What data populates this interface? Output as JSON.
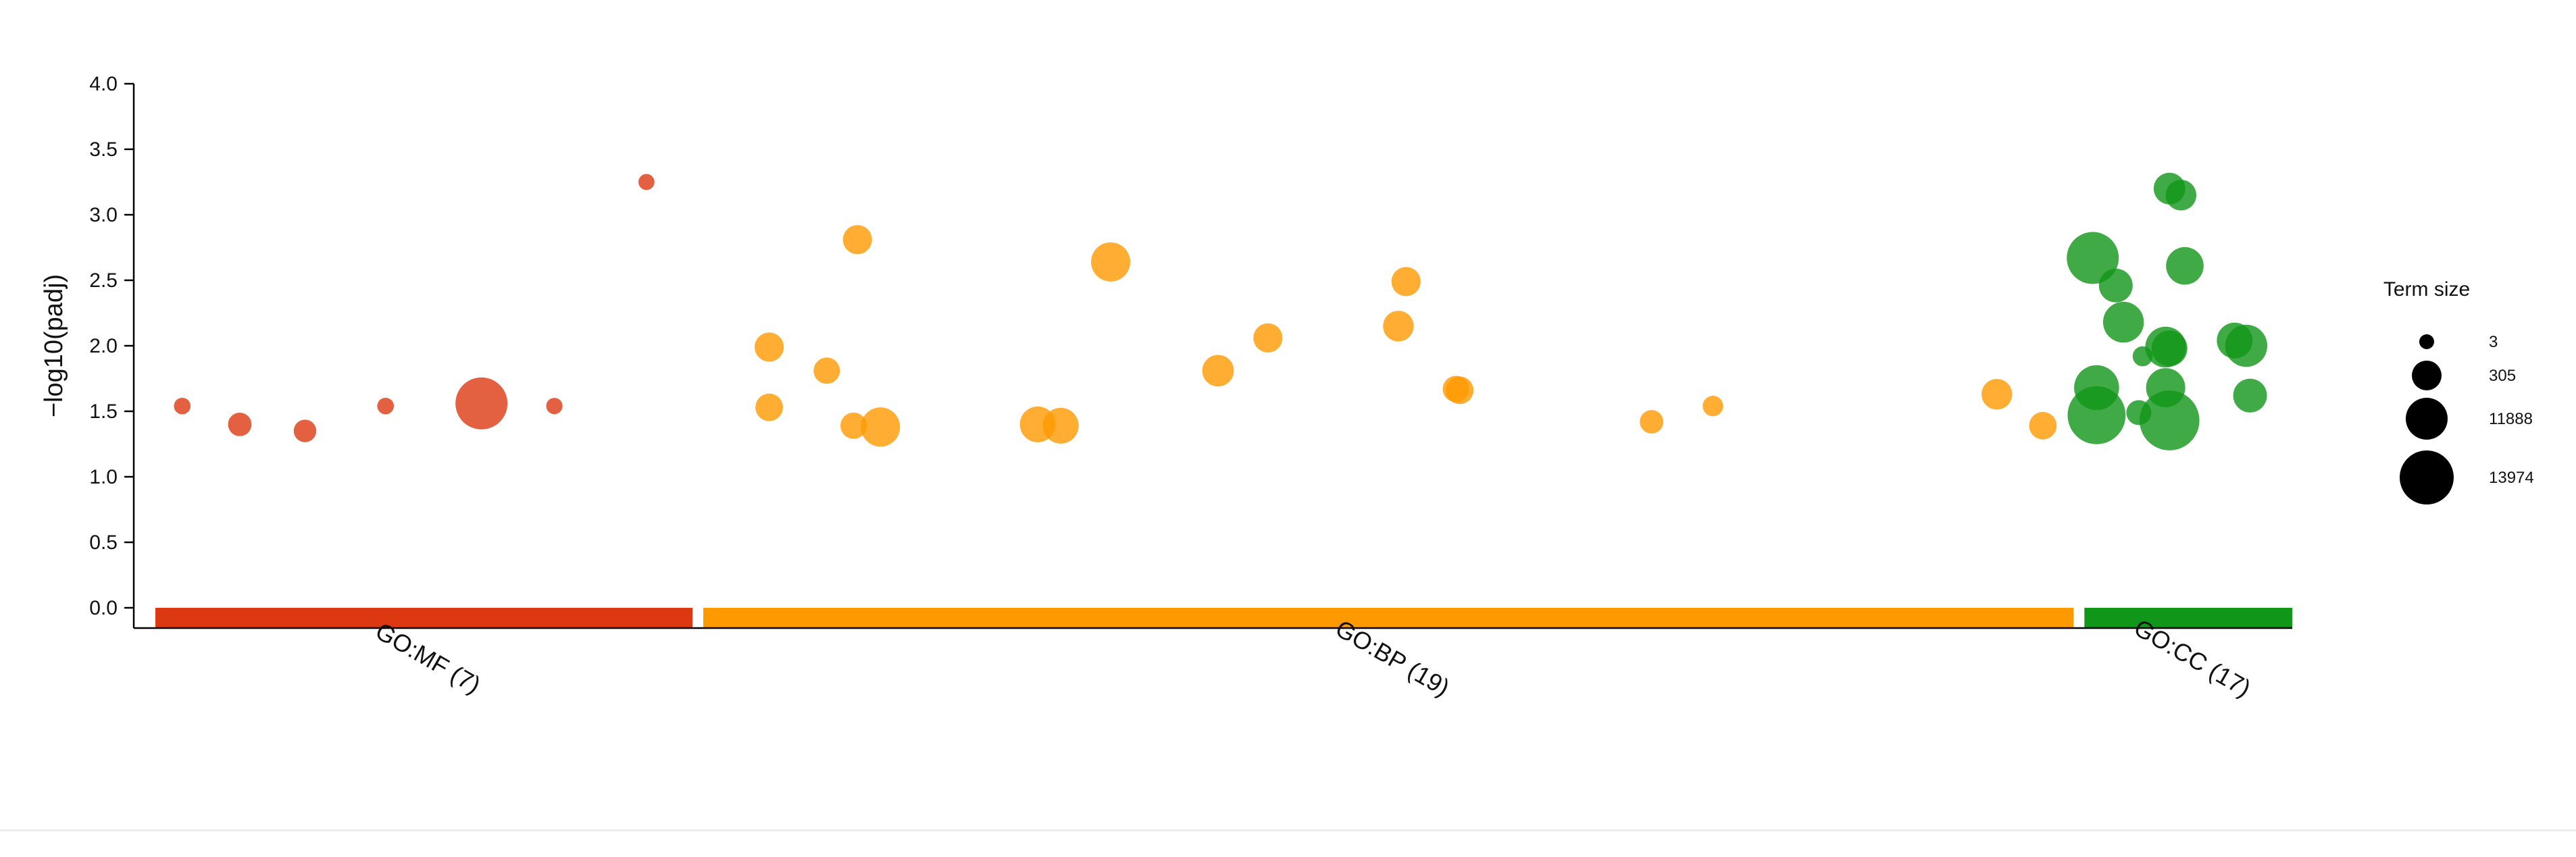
{
  "chart_data": {
    "type": "scatter",
    "ylabel": "−log10(padj)",
    "ylim": [
      0,
      4
    ],
    "yticks": [
      "0.0",
      "0.5",
      "1.0",
      "1.5",
      "2.0",
      "2.5",
      "3.0",
      "3.5",
      "4.0"
    ],
    "legend": {
      "title": "Term size",
      "placement": "right",
      "entries": [
        "3",
        "305",
        "11888",
        "13974"
      ]
    },
    "sources": [
      {
        "label": "GO:MF (7)",
        "color": "#dc3912",
        "span": [
          0,
          7
        ],
        "points": [
          {
            "x": 0.35,
            "y": 1.54,
            "size": 6
          },
          {
            "x": 1.1,
            "y": 1.4,
            "size": 60
          },
          {
            "x": 1.95,
            "y": 1.35,
            "size": 50
          },
          {
            "x": 3.0,
            "y": 1.54,
            "size": 6
          },
          {
            "x": 4.25,
            "y": 1.56,
            "size": 900
          },
          {
            "x": 5.2,
            "y": 1.54,
            "size": 5
          },
          {
            "x": 6.4,
            "y": 3.25,
            "size": 4
          }
        ]
      },
      {
        "label": "GO:BP (19)",
        "color": "#ff9900",
        "span": [
          7,
          25
        ],
        "points": [
          {
            "x": 8.0,
            "y": 1.99,
            "size": 150
          },
          {
            "x": 8.0,
            "y": 1.53,
            "size": 120
          },
          {
            "x": 8.75,
            "y": 1.81,
            "size": 100
          },
          {
            "x": 9.1,
            "y": 1.39,
            "size": 100
          },
          {
            "x": 9.15,
            "y": 2.81,
            "size": 150
          },
          {
            "x": 9.45,
            "y": 1.38,
            "size": 400
          },
          {
            "x": 11.5,
            "y": 1.4,
            "size": 300
          },
          {
            "x": 11.8,
            "y": 1.39,
            "size": 300
          },
          {
            "x": 12.45,
            "y": 2.64,
            "size": 400
          },
          {
            "x": 13.85,
            "y": 1.81,
            "size": 200
          },
          {
            "x": 14.5,
            "y": 2.06,
            "size": 150
          },
          {
            "x": 16.2,
            "y": 2.15,
            "size": 180
          },
          {
            "x": 16.3,
            "y": 2.49,
            "size": 150
          },
          {
            "x": 16.95,
            "y": 1.67,
            "size": 100
          },
          {
            "x": 17.0,
            "y": 1.66,
            "size": 120
          },
          {
            "x": 19.5,
            "y": 1.42,
            "size": 60
          },
          {
            "x": 20.3,
            "y": 1.54,
            "size": 30
          },
          {
            "x": 24.0,
            "y": 1.63,
            "size": 180
          },
          {
            "x": 24.6,
            "y": 1.39,
            "size": 120
          }
        ]
      },
      {
        "label": "GO:CC (17)",
        "color": "#109618",
        "span": [
          25,
          27.85
        ],
        "points": [
          {
            "x": 25.25,
            "y": 2.67,
            "size": 900
          },
          {
            "x": 25.3,
            "y": 1.68,
            "size": 600
          },
          {
            "x": 25.3,
            "y": 1.47,
            "size": 1200
          },
          {
            "x": 25.55,
            "y": 2.46,
            "size": 250
          },
          {
            "x": 25.65,
            "y": 2.18,
            "size": 450
          },
          {
            "x": 25.9,
            "y": 1.92,
            "size": 25
          },
          {
            "x": 25.85,
            "y": 1.49,
            "size": 80
          },
          {
            "x": 26.2,
            "y": 1.99,
            "size": 450
          },
          {
            "x": 26.25,
            "y": 1.98,
            "size": 300
          },
          {
            "x": 26.2,
            "y": 1.68,
            "size": 400
          },
          {
            "x": 26.25,
            "y": 1.43,
            "size": 1300
          },
          {
            "x": 26.25,
            "y": 3.2,
            "size": 200
          },
          {
            "x": 26.4,
            "y": 3.15,
            "size": 180
          },
          {
            "x": 26.45,
            "y": 2.61,
            "size": 350
          },
          {
            "x": 27.1,
            "y": 2.04,
            "size": 300
          },
          {
            "x": 27.25,
            "y": 2.0,
            "size": 500
          },
          {
            "x": 27.3,
            "y": 1.62,
            "size": 250
          }
        ]
      }
    ]
  }
}
